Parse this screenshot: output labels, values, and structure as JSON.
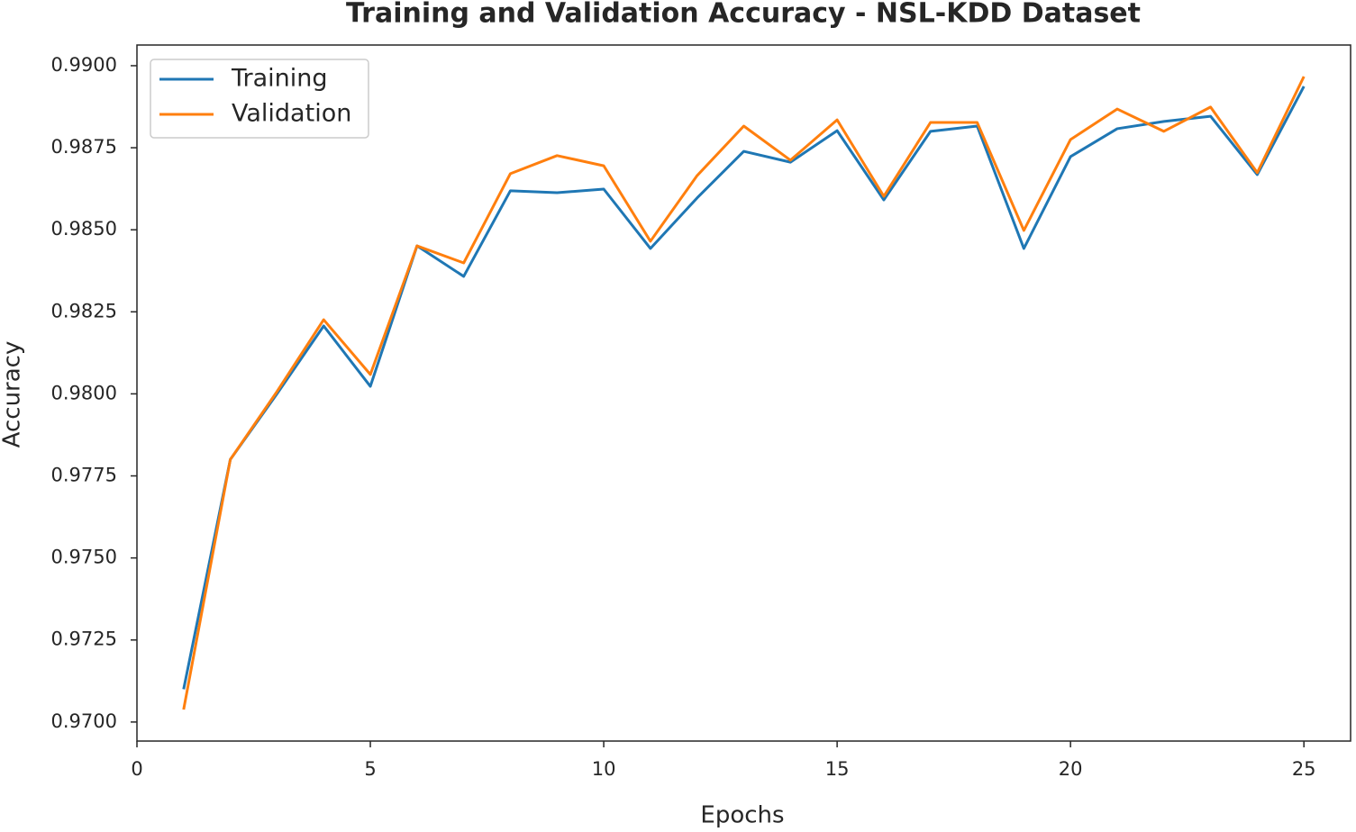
{
  "chart_data": {
    "type": "line",
    "title": "Training and Validation Accuracy - NSL-KDD Dataset",
    "xlabel": "Epochs",
    "ylabel": "Accuracy",
    "x": [
      1,
      2,
      3,
      4,
      5,
      6,
      7,
      8,
      9,
      10,
      11,
      12,
      13,
      14,
      15,
      16,
      17,
      18,
      19,
      20,
      21,
      22,
      23,
      24,
      25
    ],
    "series": [
      {
        "name": "Training",
        "color": "#1f77b4",
        "values": [
          0.971,
          0.978,
          0.98,
          0.98207,
          0.98023,
          0.98451,
          0.98358,
          0.98619,
          0.98613,
          0.98624,
          0.98443,
          0.98597,
          0.98739,
          0.98706,
          0.98802,
          0.98591,
          0.988,
          0.98816,
          0.98443,
          0.98723,
          0.98808,
          0.9883,
          0.98846,
          0.98668,
          0.98937
        ]
      },
      {
        "name": "Validation",
        "color": "#ff7f0e",
        "values": [
          0.97038,
          0.978,
          0.98007,
          0.98226,
          0.98059,
          0.98451,
          0.98399,
          0.98671,
          0.98726,
          0.98695,
          0.98465,
          0.98665,
          0.98816,
          0.98712,
          0.98835,
          0.98602,
          0.98827,
          0.98827,
          0.98498,
          0.98775,
          0.98868,
          0.988,
          0.98874,
          0.98674,
          0.98967
        ]
      }
    ],
    "xlim": [
      0,
      26
    ],
    "ylim": [
      0.96942,
      0.99063
    ],
    "xticks": [
      0,
      5,
      10,
      15,
      20,
      25
    ],
    "yticks": [
      {
        "value": 0.97,
        "label": "0.9700"
      },
      {
        "value": 0.9725,
        "label": "0.9725"
      },
      {
        "value": 0.975,
        "label": "0.9750"
      },
      {
        "value": 0.9775,
        "label": "0.9775"
      },
      {
        "value": 0.98,
        "label": "0.9800"
      },
      {
        "value": 0.9825,
        "label": "0.9825"
      },
      {
        "value": 0.985,
        "label": "0.9850"
      },
      {
        "value": 0.9875,
        "label": "0.9875"
      },
      {
        "value": 0.99,
        "label": "0.9900"
      }
    ],
    "grid": false,
    "legend": "upper left"
  }
}
